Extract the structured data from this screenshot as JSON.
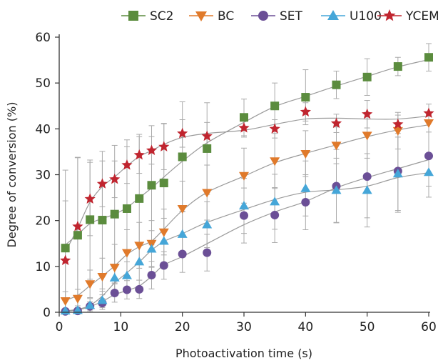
{
  "chart_data": {
    "type": "scatter",
    "title": "",
    "xlabel": "Photoactivation time (s)",
    "ylabel": "Degree of conversion (%)",
    "xlim": [
      0,
      60
    ],
    "ylim": [
      0,
      60
    ],
    "xticks": [
      0,
      10,
      20,
      30,
      40,
      50,
      60
    ],
    "yticks": [
      0,
      10,
      20,
      30,
      40,
      50,
      60
    ],
    "grid": false,
    "legend_position": "top",
    "has_fit_curves": true,
    "has_error_bars": true,
    "series": [
      {
        "name": "SC2",
        "color": "#5b8c3e",
        "marker": "square",
        "x": [
          1,
          3,
          5,
          7,
          9,
          11,
          13,
          15,
          17,
          20,
          24,
          30,
          35,
          40,
          45,
          50,
          55,
          60
        ],
        "y": [
          14,
          16.8,
          20.2,
          20.1,
          21.4,
          22.6,
          24.8,
          27.7,
          28.2,
          33.9,
          35.7,
          42.5,
          45,
          46.9,
          49.6,
          51.3,
          53.6,
          55.6
        ],
        "err": [
          17,
          17,
          13,
          15,
          15,
          15,
          14,
          13,
          13,
          12,
          10,
          4,
          5,
          6,
          3,
          4,
          2,
          3
        ]
      },
      {
        "name": "BC",
        "color": "#e07a2b",
        "marker": "triangle-down",
        "x": [
          1,
          3,
          5,
          7,
          9,
          11,
          13,
          15,
          17,
          20,
          24,
          30,
          35,
          40,
          45,
          50,
          55,
          60
        ],
        "y": [
          2.5,
          3,
          6.2,
          7.8,
          9.8,
          13,
          14.6,
          15,
          17.5,
          22.6,
          26.1,
          29.8,
          33,
          34.6,
          36.4,
          38.6,
          39.6,
          41.3
        ],
        "err": [
          2,
          2,
          3,
          4,
          5,
          5,
          5,
          5,
          5,
          6,
          6,
          6,
          6,
          5,
          4,
          5,
          4,
          2
        ]
      },
      {
        "name": "SET",
        "color": "#6b4f96",
        "marker": "circle",
        "x": [
          1,
          3,
          5,
          7,
          9,
          11,
          13,
          15,
          17,
          20,
          24,
          30,
          35,
          40,
          45,
          50,
          55,
          60
        ],
        "y": [
          0.2,
          0.3,
          1.3,
          2,
          4.2,
          4.9,
          5,
          8.1,
          10.2,
          12.7,
          13,
          21.1,
          21.2,
          24,
          27.5,
          29.6,
          30.8,
          34.1
        ],
        "err": [
          0.5,
          0.5,
          1,
          1,
          2,
          2,
          2,
          3,
          3,
          4,
          4,
          6,
          6,
          6,
          8,
          9,
          9,
          9
        ]
      },
      {
        "name": "U100",
        "color": "#45a6d8",
        "marker": "triangle-up",
        "x": [
          1,
          3,
          5,
          7,
          9,
          11,
          13,
          15,
          17,
          20,
          24,
          30,
          35,
          40,
          45,
          50,
          55,
          60
        ],
        "y": [
          0.3,
          0.4,
          1.5,
          2.6,
          7.5,
          8,
          11,
          13.8,
          15.5,
          17,
          19.1,
          23.2,
          24.1,
          27,
          26.6,
          26.6,
          30.2,
          30.5
        ],
        "err": [
          0.5,
          1,
          1.5,
          2,
          3,
          3,
          4,
          4,
          5,
          5,
          5,
          6,
          6,
          6,
          7,
          8,
          8,
          3
        ]
      },
      {
        "name": "YCEM",
        "color": "#c0252f",
        "marker": "star",
        "x": [
          1,
          3,
          5,
          7,
          9,
          11,
          13,
          15,
          17,
          20,
          24,
          30,
          35,
          40,
          45,
          50,
          55,
          60
        ],
        "y": [
          11.3,
          18.7,
          24.7,
          28,
          29,
          32.1,
          34.3,
          35.3,
          36.1,
          39,
          38.4,
          40.2,
          40,
          43.7,
          41.2,
          43.2,
          41,
          43.4
        ],
        "err": [
          13,
          15,
          8,
          5,
          4,
          4,
          4,
          3,
          5,
          3,
          3,
          2,
          2,
          2,
          2,
          3,
          2,
          2
        ]
      }
    ]
  }
}
